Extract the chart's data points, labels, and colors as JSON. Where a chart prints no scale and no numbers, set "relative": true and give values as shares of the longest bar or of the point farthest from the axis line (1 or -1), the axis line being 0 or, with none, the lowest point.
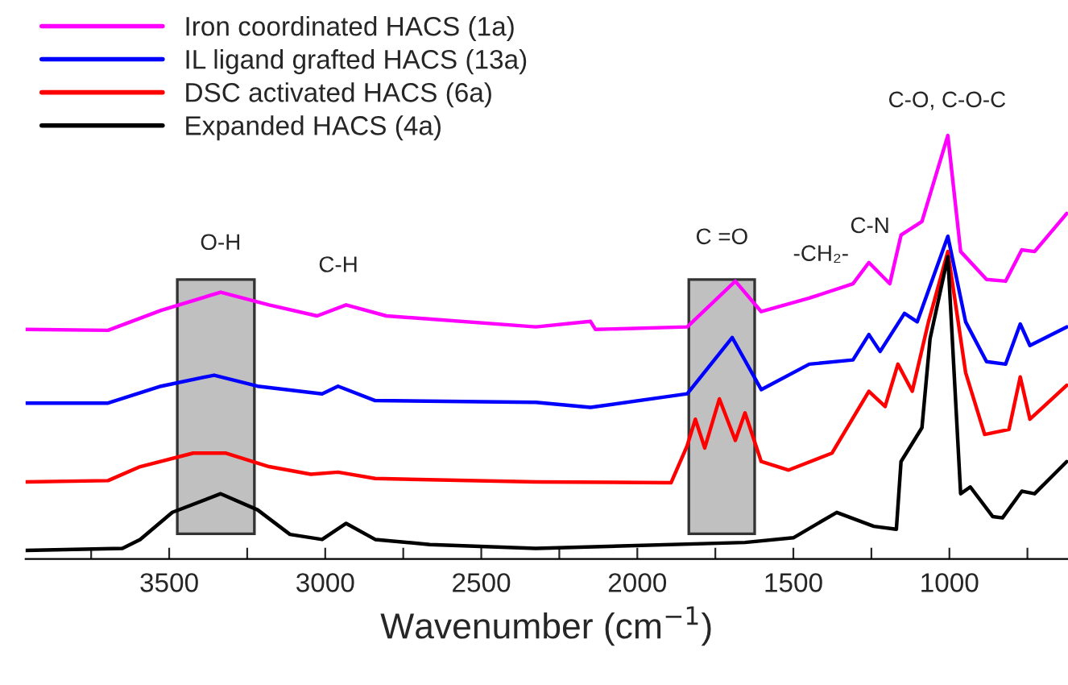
{
  "chart_data": {
    "type": "line",
    "relative": true,
    "xlabel": "Wavenumber (cm$^{−1}$)",
    "xlim": [
      3960,
      620
    ],
    "xticks": [
      {
        "value": 3750,
        "label": null
      },
      3500,
      {
        "value": 3250,
        "label": null
      },
      3000,
      {
        "value": 2750,
        "label": null
      },
      2500,
      {
        "value": 2250,
        "label": null
      },
      2000,
      {
        "value": 1750,
        "label": null
      },
      1500,
      {
        "value": 1250,
        "label": null
      },
      1000,
      {
        "value": 750,
        "label": null
      }
    ],
    "legend": "top left",
    "grid": false,
    "series": [
      {
        "name": "Iron coordinated HACS (1a)",
        "color": "#ff00ff",
        "x": [
          3960,
          3696,
          3526,
          3335,
          3180,
          3026,
          2933,
          2804,
          2325,
          2150,
          2134,
          1840,
          1686,
          1603,
          1449,
          1309,
          1258,
          1191,
          1155,
          1088,
          1005,
          964,
          881,
          820,
          768,
          727,
          624
        ],
        "values": [
          0.542,
          0.54,
          0.587,
          0.63,
          0.6,
          0.574,
          0.6,
          0.574,
          0.548,
          0.561,
          0.542,
          0.548,
          0.656,
          0.584,
          0.616,
          0.65,
          0.7,
          0.65,
          0.765,
          0.797,
          1.0,
          0.726,
          0.66,
          0.656,
          0.73,
          0.726,
          0.816
        ]
      },
      {
        "name": "IL ligand grafted HACS (13a)",
        "color": "#0000ff",
        "x": [
          3960,
          3696,
          3526,
          3356,
          3217,
          3010,
          2959,
          2840,
          2325,
          2150,
          1840,
          1696,
          1603,
          1449,
          1309,
          1258,
          1222,
          1144,
          1103,
          1005,
          948,
          881,
          820,
          773,
          742,
          624
        ],
        "values": [
          0.368,
          0.368,
          0.408,
          0.434,
          0.408,
          0.39,
          0.408,
          0.374,
          0.37,
          0.358,
          0.39,
          0.523,
          0.4,
          0.46,
          0.47,
          0.53,
          0.49,
          0.58,
          0.56,
          0.762,
          0.56,
          0.466,
          0.46,
          0.555,
          0.504,
          0.548
        ]
      },
      {
        "name": "DSC activated HACS (6a)",
        "color": "#ff0000",
        "x": [
          3960,
          3696,
          3593,
          3423,
          3320,
          3180,
          3046,
          2959,
          2840,
          2325,
          1892,
          1840,
          1814,
          1784,
          1737,
          1686,
          1655,
          1603,
          1515,
          1376,
          1258,
          1206,
          1165,
          1119,
          1067,
          1005,
          948,
          887,
          809,
          773,
          742,
          624
        ],
        "values": [
          0.182,
          0.185,
          0.218,
          0.25,
          0.25,
          0.218,
          0.2,
          0.205,
          0.19,
          0.182,
          0.18,
          0.268,
          0.33,
          0.262,
          0.378,
          0.28,
          0.345,
          0.23,
          0.21,
          0.25,
          0.396,
          0.36,
          0.46,
          0.396,
          0.56,
          0.726,
          0.44,
          0.294,
          0.306,
          0.43,
          0.33,
          0.41
        ]
      },
      {
        "name": "Expanded HACS (4a)",
        "color": "#000000",
        "x": [
          3960,
          3650,
          3593,
          3490,
          3335,
          3217,
          3113,
          3010,
          2933,
          2840,
          2665,
          2325,
          1655,
          1500,
          1361,
          1242,
          1170,
          1155,
          1088,
          1062,
          1005,
          964,
          933,
          861,
          830,
          768,
          727,
          624
        ],
        "values": [
          0.02,
          0.025,
          0.046,
          0.11,
          0.154,
          0.116,
          0.058,
          0.046,
          0.084,
          0.046,
          0.034,
          0.025,
          0.039,
          0.05,
          0.11,
          0.077,
          0.07,
          0.23,
          0.31,
          0.52,
          0.714,
          0.154,
          0.17,
          0.1,
          0.097,
          0.16,
          0.154,
          0.23
        ]
      }
    ],
    "bands": [
      {
        "axis": "x",
        "from": 3474,
        "to": 3227,
        "color": "#c0c0c0"
      },
      {
        "axis": "x",
        "from": 1835,
        "to": 1624,
        "color": "#c0c0c0"
      }
    ],
    "annotations": [
      "O-H",
      "C-H",
      "C =O",
      "-CH₂-",
      "C-N",
      "C-O, C-O-C"
    ]
  }
}
